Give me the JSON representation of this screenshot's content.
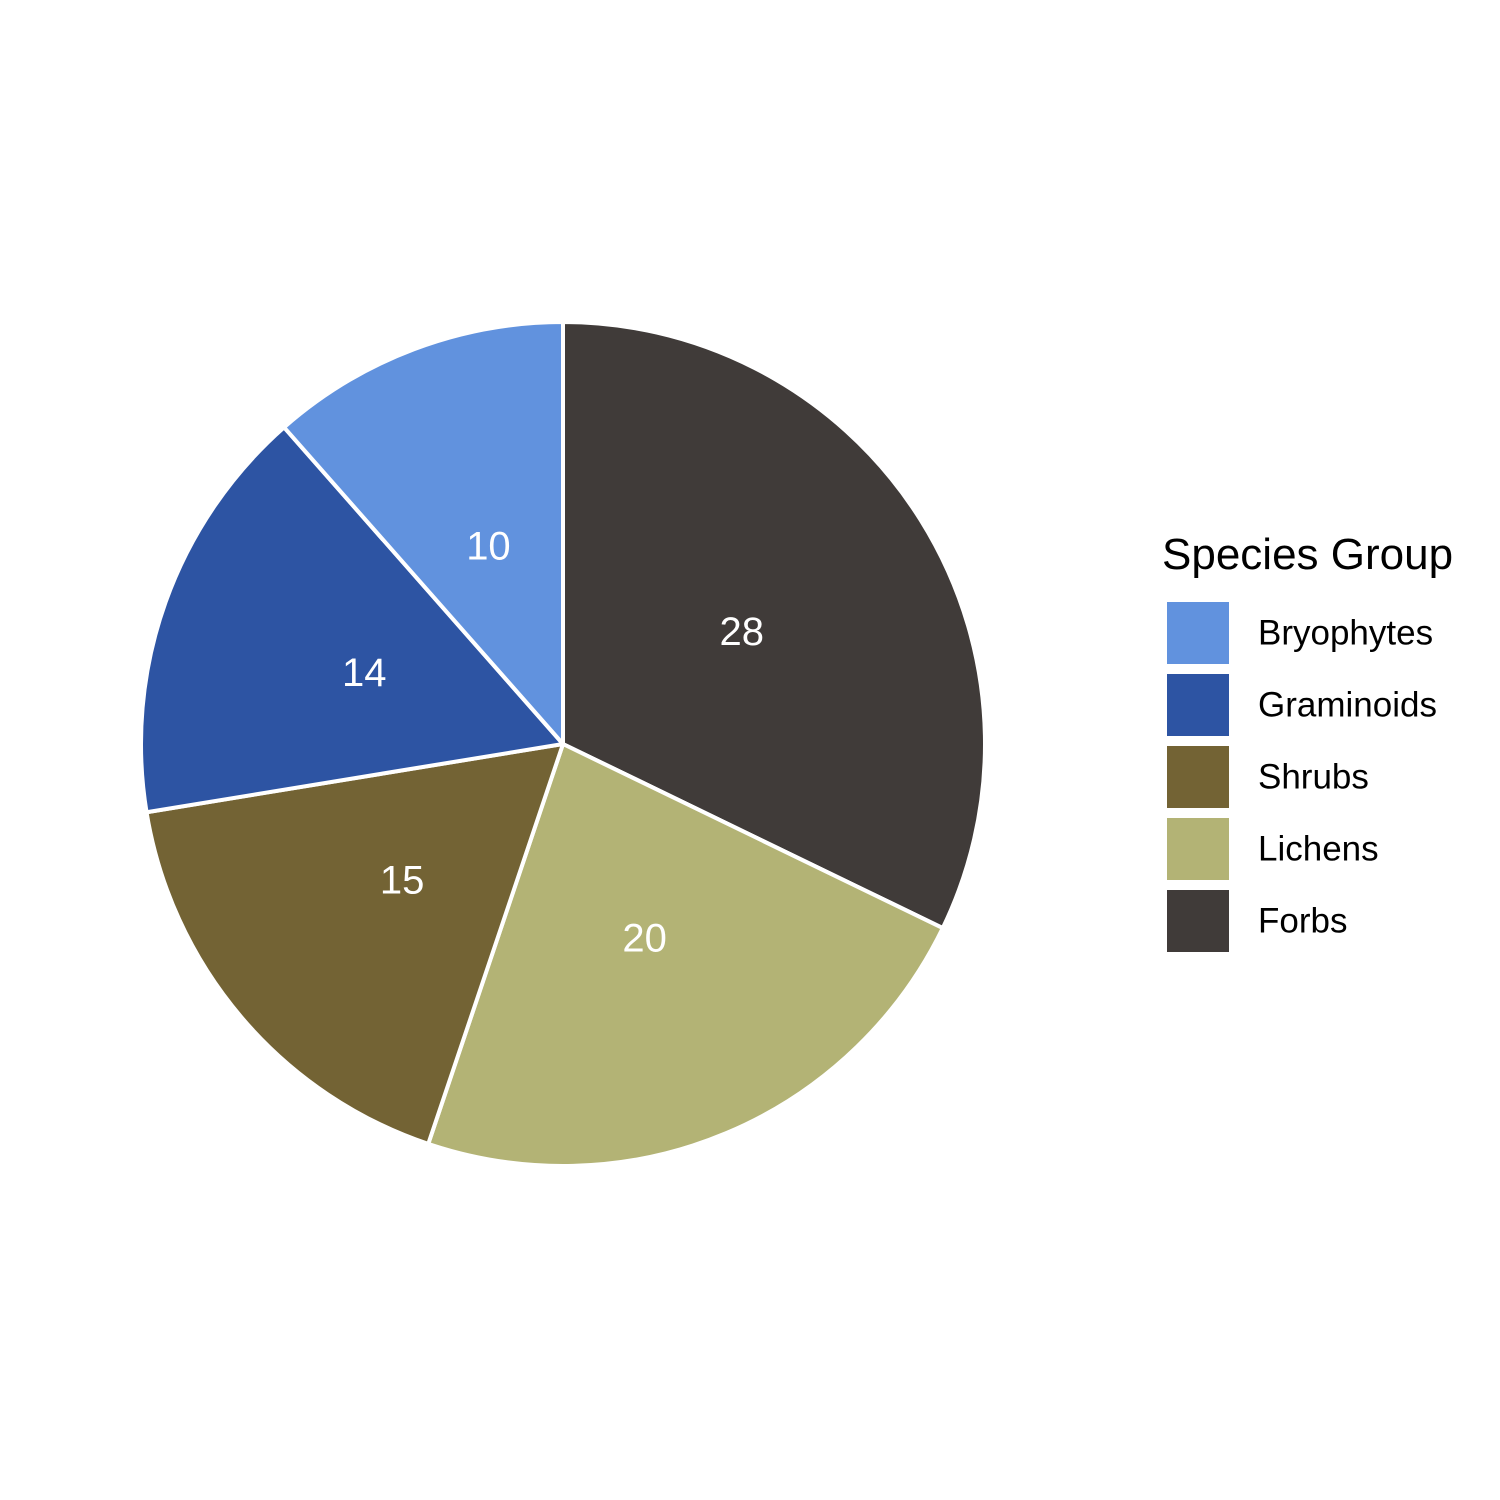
{
  "chart_data": {
    "type": "pie",
    "categories": [
      "Bryophytes",
      "Graminoids",
      "Shrubs",
      "Lichens",
      "Forbs"
    ],
    "values": [
      10,
      14,
      15,
      20,
      28
    ],
    "colors": {
      "Bryophytes": "#6192DE",
      "Graminoids": "#2D54A3",
      "Shrubs": "#736334",
      "Lichens": "#B3B375",
      "Forbs": "#403B39"
    },
    "slice_order_clockwise_from_top": [
      "Forbs",
      "Lichens",
      "Shrubs",
      "Graminoids",
      "Bryophytes"
    ],
    "legend_title": "Species Group",
    "legend_order": [
      "Bryophytes",
      "Graminoids",
      "Shrubs",
      "Lichens",
      "Forbs"
    ],
    "legend_position": "right",
    "slice_label_color": "#ffffff",
    "slice_border_color": "#ffffff"
  }
}
